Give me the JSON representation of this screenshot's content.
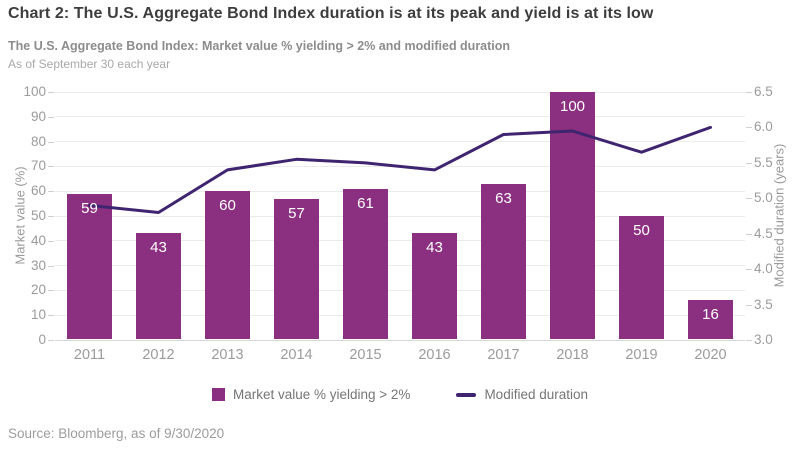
{
  "page": {
    "title": "Chart 2: The U.S. Aggregate Bond Index duration is at its peak and yield is at its low",
    "subtitle": "The U.S. Aggregate Bond Index: Market value % yielding > 2% and modified duration",
    "as_of": "As of September 30 each year",
    "source": "Source: Bloomberg, as of 9/30/2020"
  },
  "chart_data": {
    "type": "bar",
    "subtype": "bar-with-line-overlay",
    "categories": [
      "2011",
      "2012",
      "2013",
      "2014",
      "2015",
      "2016",
      "2017",
      "2018",
      "2019",
      "2020"
    ],
    "series": [
      {
        "name": "Market value % yielding > 2%",
        "type": "bar",
        "axis": "left",
        "color": "#8b2f80",
        "values": [
          59,
          43,
          60,
          57,
          61,
          43,
          63,
          100,
          50,
          16
        ]
      },
      {
        "name": "Modified duration",
        "type": "line",
        "axis": "right",
        "color": "#3f2470",
        "values": [
          4.9,
          4.8,
          5.4,
          5.55,
          5.5,
          5.4,
          5.9,
          5.95,
          5.65,
          6.0
        ]
      }
    ],
    "left_axis": {
      "label": "Market value (%)",
      "min": 0,
      "max": 100,
      "step": 10,
      "ticks": [
        "0",
        "10",
        "20",
        "30",
        "40",
        "50",
        "60",
        "70",
        "80",
        "90",
        "100"
      ]
    },
    "right_axis": {
      "label": "Modified duration (years)",
      "min": 3.0,
      "max": 6.5,
      "step": 0.5,
      "ticks": [
        "3.0",
        "3.5",
        "4.0",
        "4.5",
        "5.0",
        "5.5",
        "6.0",
        "6.5"
      ]
    },
    "grid": "horizontal",
    "bar_value_labels": [
      59,
      43,
      60,
      57,
      61,
      43,
      63,
      100,
      50,
      16
    ],
    "bar_label_color": "#ffffff",
    "legend_position": "bottom"
  },
  "legend": {
    "items": [
      {
        "label": "Market value % yielding > 2%",
        "marker": "square",
        "color": "#8b2f80"
      },
      {
        "label": "Modified duration",
        "marker": "line",
        "color": "#3f2470"
      }
    ]
  }
}
